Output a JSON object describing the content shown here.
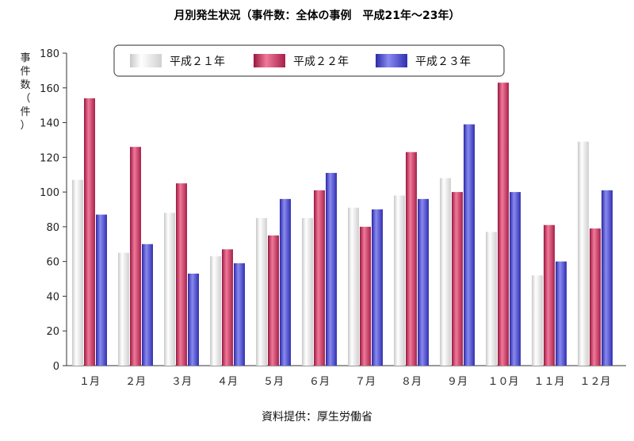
{
  "chart_data": {
    "type": "bar",
    "title": "月別発生状況（事件数：全体の事例　平成21年～23年）",
    "ylabel_chars": [
      "事",
      "件",
      "数",
      "（",
      "件",
      "）"
    ],
    "ylim": [
      0,
      180
    ],
    "yticks": [
      0,
      20,
      40,
      60,
      80,
      100,
      120,
      140,
      160,
      180
    ],
    "categories": [
      "１月",
      "２月",
      "３月",
      "４月",
      "５月",
      "６月",
      "７月",
      "８月",
      "９月",
      "１０月",
      "１１月",
      "１２月"
    ],
    "series": [
      {
        "name": "平成２１年",
        "values": [
          107,
          65,
          88,
          63,
          85,
          85,
          91,
          98,
          108,
          77,
          52,
          129
        ]
      },
      {
        "name": "平成２２年",
        "values": [
          154,
          126,
          105,
          67,
          75,
          101,
          80,
          123,
          100,
          163,
          81,
          79
        ]
      },
      {
        "name": "平成２３年",
        "values": [
          87,
          70,
          53,
          59,
          96,
          111,
          90,
          96,
          139,
          100,
          60,
          101
        ]
      }
    ],
    "legend_position": "top",
    "grid": false,
    "source": "資料提供：厚生労働省"
  }
}
